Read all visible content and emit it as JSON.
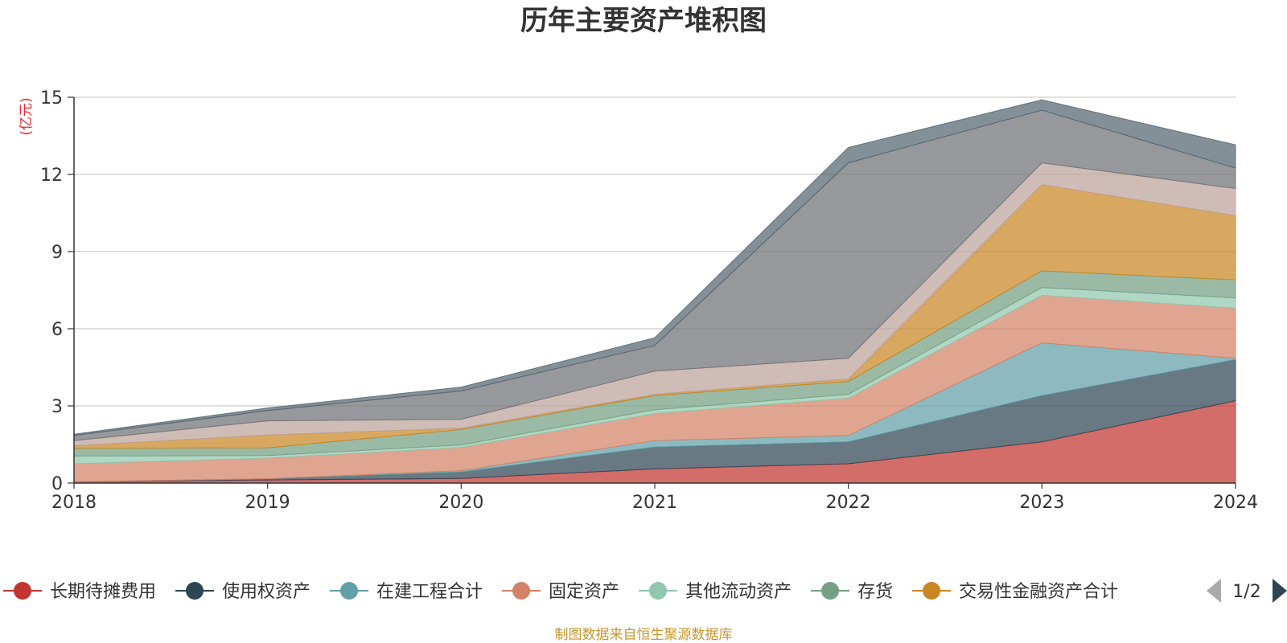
{
  "chart_data": {
    "type": "area",
    "stacked": true,
    "title": "历年主要资产堆积图",
    "unit": "(亿元)",
    "x": [
      "2018",
      "2019",
      "2020",
      "2021",
      "2022",
      "2023",
      "2024"
    ],
    "ylim": [
      0,
      15
    ],
    "yticks": [
      "0",
      "3",
      "6",
      "9",
      "12",
      "15"
    ],
    "grid": true,
    "legend_position": "bottom",
    "legend_page": "1/2",
    "series": [
      {
        "name": "长期待摊费用",
        "color": "#c23531",
        "values": [
          0.05,
          0.12,
          0.18,
          0.55,
          0.75,
          1.6,
          3.2
        ]
      },
      {
        "name": "使用权资产",
        "color": "#2f4554",
        "values": [
          0.0,
          0.05,
          0.25,
          0.85,
          0.85,
          1.8,
          1.6
        ]
      },
      {
        "name": "在建工程合计",
        "color": "#61a0a8",
        "values": [
          0.0,
          0.0,
          0.05,
          0.25,
          0.25,
          2.05,
          0.05
        ]
      },
      {
        "name": "固定资产",
        "color": "#d48265",
        "values": [
          0.7,
          0.8,
          0.9,
          1.05,
          1.45,
          1.85,
          1.95
        ]
      },
      {
        "name": "其他流动资产",
        "color": "#91c7ae",
        "values": [
          0.3,
          0.1,
          0.1,
          0.15,
          0.15,
          0.3,
          0.4
        ]
      },
      {
        "name": "存货",
        "color": "#749f83",
        "values": [
          0.3,
          0.3,
          0.6,
          0.55,
          0.5,
          0.65,
          0.7
        ]
      },
      {
        "name": "交易性金融资产合计",
        "color": "#ca8622",
        "values": [
          0.1,
          0.5,
          0.05,
          0.05,
          0.1,
          3.35,
          2.5
        ]
      },
      {
        "name": "",
        "color": "#bda29a",
        "values": [
          0.2,
          0.55,
          0.35,
          0.9,
          0.8,
          0.85,
          1.05
        ]
      },
      {
        "name": "",
        "color": "#6e7074",
        "values": [
          0.2,
          0.4,
          1.1,
          1.0,
          7.6,
          2.05,
          0.8
        ]
      },
      {
        "name": "",
        "color": "#546570",
        "values": [
          0.05,
          0.1,
          0.15,
          0.3,
          0.6,
          0.4,
          0.9
        ]
      }
    ],
    "source": "制图数据来自恒生聚源数据库"
  }
}
